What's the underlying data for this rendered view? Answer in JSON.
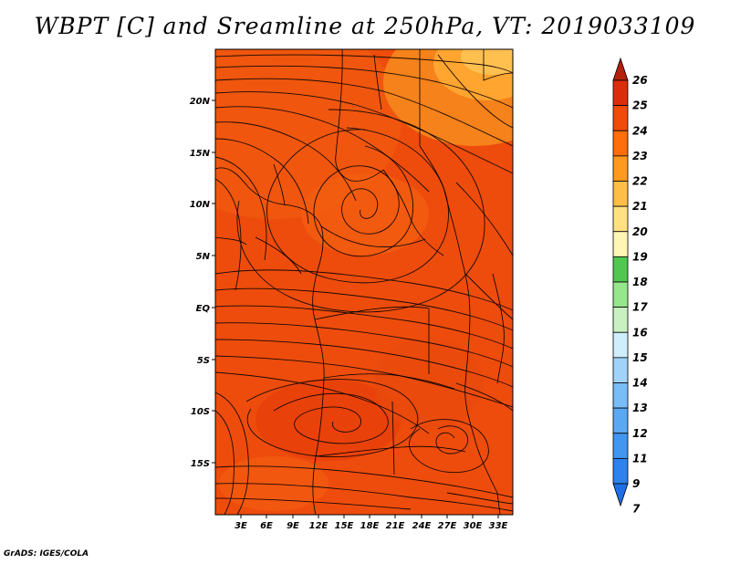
{
  "title": "WBPT [C] and Sreamline at 250hPa, VT: 2019033109",
  "credit": "GrADS: IGES/COLA",
  "map": {
    "lat_labels": [
      "20N",
      "15N",
      "10N",
      "5N",
      "EQ",
      "5S",
      "10S",
      "15S"
    ],
    "lon_labels": [
      "3E",
      "6E",
      "9E",
      "12E",
      "15E",
      "18E",
      "21E",
      "24E",
      "27E",
      "30E",
      "33E"
    ]
  },
  "colorbar": {
    "levels": [
      "7",
      "9",
      "11",
      "12",
      "13",
      "14",
      "15",
      "16",
      "17",
      "18",
      "19",
      "20",
      "21",
      "22",
      "23",
      "24",
      "25",
      "26"
    ],
    "colors": [
      "#1e6ee6",
      "#2d82ee",
      "#4196f0",
      "#5aa8f4",
      "#78bcf8",
      "#a0d2fa",
      "#cfeefb",
      "#c8f0c0",
      "#96e68c",
      "#50c850",
      "#fff5b4",
      "#ffe182",
      "#ffbe46",
      "#ff9a1e",
      "#ff6e0a",
      "#f04b0a",
      "#dc2d0a",
      "#b41e0a"
    ]
  }
}
